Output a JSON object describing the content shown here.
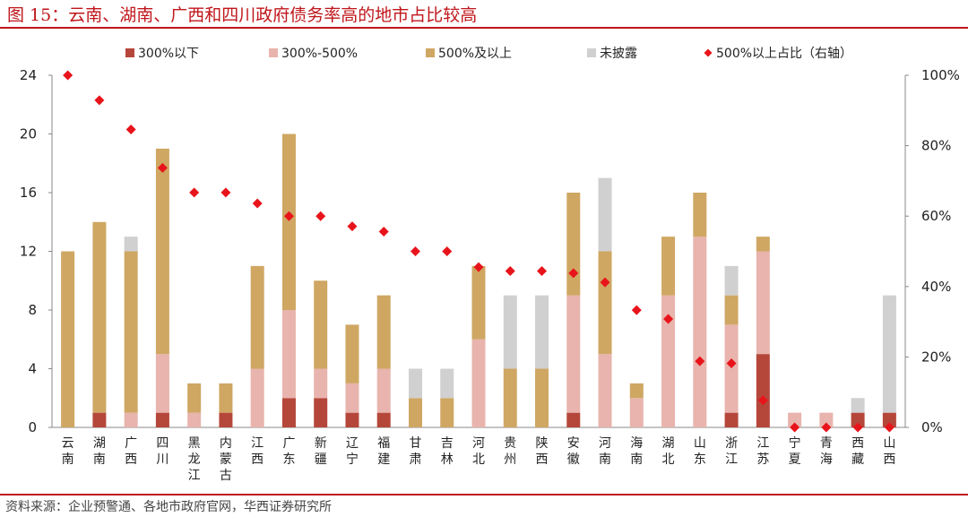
{
  "title": "图 15：云南、湖南、广西和四川政府债务率高的地市占比较高",
  "source": "资料来源：企业预警通、各地市政府官网，华西证券研究所",
  "colors": {
    "below300": "#b5473a",
    "r300_500": "#e8b4ad",
    "above500": "#cfa763",
    "undisclosed": "#d0d0d0",
    "ratio": "#e8141b",
    "accent": "#c0161b"
  },
  "chart_data": {
    "type": "bar",
    "stacked": true,
    "categories": [
      "云南",
      "湖南",
      "广西",
      "四川",
      "黑龙江",
      "内蒙古",
      "江西",
      "广东",
      "新疆",
      "辽宁",
      "福建",
      "甘肃",
      "吉林",
      "河北",
      "贵州",
      "陕西",
      "安徽",
      "河南",
      "海南",
      "湖北",
      "山东",
      "浙江",
      "江苏",
      "宁夏",
      "青海",
      "西藏",
      "山西"
    ],
    "series": [
      {
        "name": "300%以下",
        "key": "below300",
        "axis": "left",
        "values": [
          0,
          1,
          0,
          1,
          0,
          1,
          0,
          2,
          2,
          1,
          1,
          0,
          0,
          0,
          0,
          0,
          1,
          0,
          0,
          0,
          0,
          1,
          5,
          0,
          0,
          1,
          1
        ]
      },
      {
        "name": "300%-500%",
        "key": "r300_500",
        "axis": "left",
        "values": [
          0,
          0,
          1,
          4,
          1,
          0,
          4,
          6,
          2,
          2,
          3,
          0,
          0,
          6,
          0,
          0,
          8,
          5,
          2,
          9,
          13,
          6,
          7,
          1,
          1,
          0,
          0
        ]
      },
      {
        "name": "500%及以上",
        "key": "above500",
        "axis": "left",
        "values": [
          12,
          13,
          11,
          14,
          2,
          2,
          7,
          12,
          6,
          4,
          5,
          2,
          2,
          5,
          4,
          4,
          7,
          7,
          1,
          4,
          3,
          2,
          1,
          0,
          0,
          0,
          0
        ]
      },
      {
        "name": "未披露",
        "key": "undisclosed",
        "axis": "left",
        "values": [
          0,
          0,
          1,
          0,
          0,
          0,
          0,
          0,
          0,
          0,
          0,
          2,
          2,
          0,
          5,
          5,
          0,
          5,
          0,
          0,
          0,
          2,
          0,
          0,
          0,
          1,
          8
        ]
      },
      {
        "name": "500%以上占比（右轴）",
        "key": "ratio",
        "axis": "right",
        "type": "scatter",
        "values": [
          100,
          92.9,
          84.6,
          73.7,
          66.7,
          66.7,
          63.6,
          60,
          60,
          57.1,
          55.6,
          50,
          50,
          45.5,
          44.4,
          44.4,
          43.8,
          41.2,
          33.3,
          30.8,
          18.8,
          18.2,
          7.7,
          0,
          0,
          0,
          0
        ]
      }
    ],
    "ylim": [
      0,
      24
    ],
    "yticks": [
      "0",
      "4",
      "8",
      "12",
      "16",
      "20",
      "24"
    ],
    "y2lim": [
      0,
      100
    ],
    "y2ticks": [
      "0%",
      "20%",
      "40%",
      "60%",
      "80%",
      "100%"
    ],
    "grid": false,
    "legend_position": "top"
  }
}
